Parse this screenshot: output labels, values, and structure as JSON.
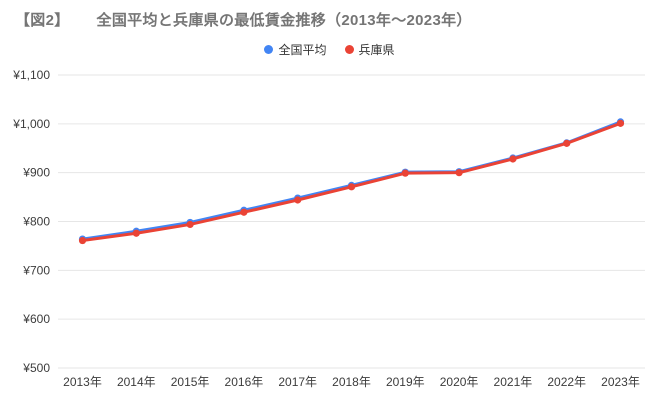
{
  "title": {
    "prefix": "【図2】",
    "text": "全国平均と兵庫県の最低賃金推移（2013年～2023年）"
  },
  "legend": {
    "items": [
      {
        "label": "全国平均",
        "color": "#4285F4"
      },
      {
        "label": "兵庫県",
        "color": "#EA4335"
      }
    ]
  },
  "chart_data": {
    "type": "line",
    "title": "全国平均と兵庫県の最低賃金推移（2013年～2023年）",
    "x": [
      "2013年",
      "2014年",
      "2015年",
      "2016年",
      "2017年",
      "2018年",
      "2019年",
      "2020年",
      "2021年",
      "2022年",
      "2023年"
    ],
    "series": [
      {
        "name": "全国平均",
        "color": "#4285F4",
        "values": [
          764,
          780,
          798,
          823,
          848,
          874,
          901,
          902,
          930,
          961,
          1004
        ]
      },
      {
        "name": "兵庫県",
        "color": "#EA4335",
        "values": [
          761,
          776,
          794,
          819,
          844,
          871,
          899,
          900,
          928,
          960,
          1001
        ]
      }
    ],
    "ylim": [
      500,
      1100
    ],
    "yticks": [
      {
        "value": 500,
        "label": "¥500"
      },
      {
        "value": 600,
        "label": "¥600"
      },
      {
        "value": 700,
        "label": "¥700"
      },
      {
        "value": 800,
        "label": "¥800"
      },
      {
        "value": 900,
        "label": "¥900"
      },
      {
        "value": 1000,
        "label": "¥1,000"
      },
      {
        "value": 1100,
        "label": "¥1,100"
      }
    ],
    "grid": true,
    "legend_position": "top",
    "colors": {
      "grid": "#e6e6e6",
      "axis_text": "#3c3c3c",
      "title": "#757575",
      "background": "#ffffff"
    }
  }
}
